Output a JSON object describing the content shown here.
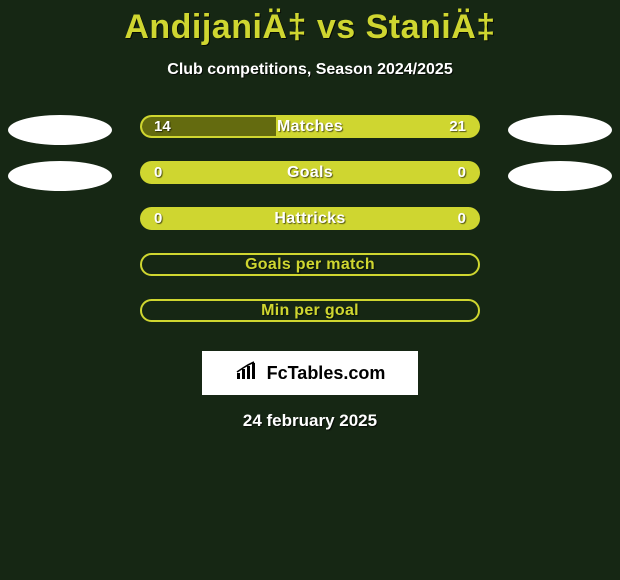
{
  "header": {
    "title": "AndijaniÄ‡ vs StaniÄ‡",
    "subtitle": "Club competitions, Season 2024/2025",
    "title_color": "#cfd630",
    "title_fontsize": 34,
    "subtitle_color": "#ffffff",
    "subtitle_fontsize": 16
  },
  "background_color": "#162714",
  "rows": [
    {
      "label": "Matches",
      "left_value": "14",
      "right_value": "21",
      "left_num": 14,
      "right_num": 21,
      "fill_pct": 40,
      "show_values": true,
      "show_left_ellipse": true,
      "show_right_ellipse": true,
      "bar_border_color": "#cfd630",
      "bar_bg_color": "#cfd630",
      "bar_fill_color": "#646b0f",
      "label_color": "#ffffff",
      "value_color": "#ffffff",
      "ellipse_color": "#ffffff"
    },
    {
      "label": "Goals",
      "left_value": "0",
      "right_value": "0",
      "left_num": 0,
      "right_num": 0,
      "fill_pct": 0,
      "show_values": true,
      "show_left_ellipse": true,
      "show_right_ellipse": true,
      "bar_border_color": "#cfd630",
      "bar_bg_color": "#cfd630",
      "bar_fill_color": "#646b0f",
      "label_color": "#ffffff",
      "value_color": "#ffffff",
      "ellipse_color": "#ffffff"
    },
    {
      "label": "Hattricks",
      "left_value": "0",
      "right_value": "0",
      "left_num": 0,
      "right_num": 0,
      "fill_pct": 0,
      "show_values": true,
      "show_left_ellipse": false,
      "show_right_ellipse": false,
      "bar_border_color": "#cfd630",
      "bar_bg_color": "#cfd630",
      "bar_fill_color": "#646b0f",
      "label_color": "#ffffff",
      "value_color": "#ffffff",
      "ellipse_color": "#ffffff"
    },
    {
      "label": "Goals per match",
      "left_value": "",
      "right_value": "",
      "left_num": 0,
      "right_num": 0,
      "fill_pct": 0,
      "show_values": false,
      "show_left_ellipse": false,
      "show_right_ellipse": false,
      "bar_border_color": "#cfd630",
      "bar_bg_color": "#162714",
      "bar_fill_color": "#646b0f",
      "label_color": "#cfd630",
      "value_color": "#ffffff",
      "ellipse_color": "#ffffff"
    },
    {
      "label": "Min per goal",
      "left_value": "",
      "right_value": "",
      "left_num": 0,
      "right_num": 0,
      "fill_pct": 0,
      "show_values": false,
      "show_left_ellipse": false,
      "show_right_ellipse": false,
      "bar_border_color": "#cfd630",
      "bar_bg_color": "#162714",
      "bar_fill_color": "#646b0f",
      "label_color": "#cfd630",
      "value_color": "#ffffff",
      "ellipse_color": "#ffffff"
    }
  ],
  "footer": {
    "logo_text": "FcTables.com",
    "logo_text_color": "#000000",
    "logo_bg_color": "#ffffff",
    "date": "24 february 2025",
    "date_color": "#ffffff"
  }
}
